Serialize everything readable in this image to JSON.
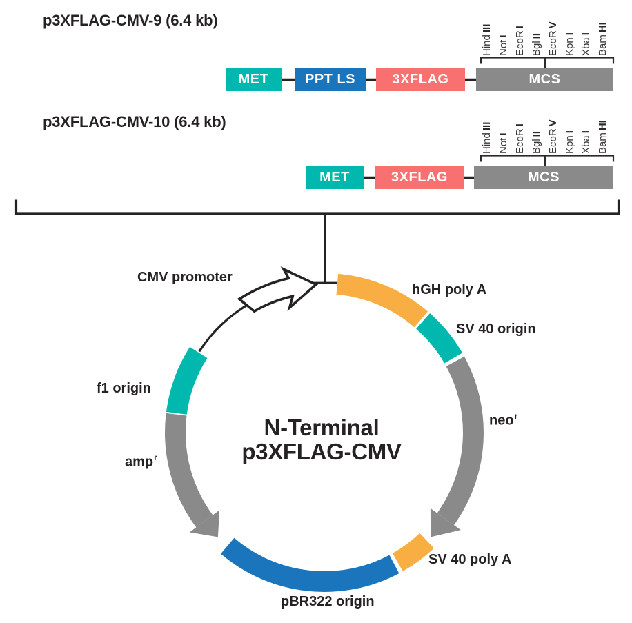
{
  "constructs": [
    {
      "title": "p3XFLAG-CMV-9 (6.4 kb)",
      "boxes": [
        {
          "label": "MET",
          "color": "#00b8ad"
        },
        {
          "label": "PPT LS",
          "color": "#1b75bc"
        },
        {
          "label": "3XFLAG",
          "color": "#f87070"
        },
        {
          "label": "MCS",
          "color": "#8a8a8a"
        }
      ]
    },
    {
      "title": "p3XFLAG-CMV-10 (6.4 kb)",
      "boxes": [
        {
          "label": "MET",
          "color": "#00b8ad"
        },
        {
          "label": "3XFLAG",
          "color": "#f87070"
        },
        {
          "label": "MCS",
          "color": "#8a8a8a"
        }
      ]
    }
  ],
  "restriction_sites": [
    {
      "name": "Hind",
      "num": "III"
    },
    {
      "name": "Not",
      "num": "I"
    },
    {
      "name": "EcoR",
      "num": "I"
    },
    {
      "name": "Bgl",
      "num": "II"
    },
    {
      "name": "EcoR",
      "num": "V"
    },
    {
      "name": "Kpn",
      "num": "I"
    },
    {
      "name": "Xba",
      "num": "I"
    },
    {
      "name": "Bam",
      "num": "HI"
    }
  ],
  "plasmid": {
    "name_line1": "N-Terminal",
    "name_line2": "p3XFLAG-CMV",
    "segments": [
      {
        "name": "hGH poly A",
        "color": "#f9ae43",
        "start_deg": 5,
        "end_deg": 40.5,
        "arrow_tip_deg": null
      },
      {
        "name": "SV 40 origin",
        "color": "#00b8ad",
        "start_deg": 41.5,
        "end_deg": 60,
        "arrow_tip_deg": null
      },
      {
        "name": "neo r",
        "color": "#8a8a8a",
        "start_deg": 61.5,
        "end_deg": 125.5,
        "arrow_tip_deg": 134.5
      },
      {
        "name": "SV 40 poly A",
        "color": "#f9ae43",
        "start_deg": 136.5,
        "end_deg": 150.5,
        "arrow_tip_deg": null
      },
      {
        "name": "pBR322 origin",
        "color": "#1b75bc",
        "start_deg": 152,
        "end_deg": 220.5,
        "arrow_tip_deg": null
      },
      {
        "name": "amp r",
        "color": "#8a8a8a",
        "start_deg": 277,
        "end_deg": 233.5,
        "arrow_tip_deg": 225.5
      },
      {
        "name": "f1 origin",
        "color": "#00b8ad",
        "start_deg": 277.5,
        "end_deg": 302.5,
        "arrow_tip_deg": null
      }
    ],
    "labels": {
      "cmv_promoter": "CMV promoter",
      "hgh_poly_a": "hGH poly A",
      "sv40_origin": "SV 40 origin",
      "neo": {
        "text": "neo",
        "sup": "r"
      },
      "sv40_poly_a": "SV 40 poly A",
      "pbr322_origin": "pBR322 origin",
      "amp": {
        "text": "amp",
        "sup": "r"
      },
      "f1_origin": "f1 origin"
    },
    "line_color": "#262223"
  }
}
